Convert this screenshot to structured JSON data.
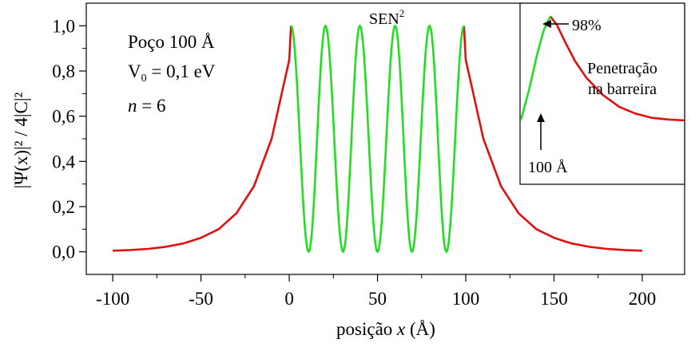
{
  "chart_data": {
    "type": "line",
    "title": "",
    "xlabel_prefix": "posição ",
    "xlabel_var": "x",
    "xlabel_suffix": " (Å)",
    "ylabel": "|Ψ(x)|² / 4|C|²",
    "xlim": [
      -115,
      224
    ],
    "ylim": [
      -0.1,
      1.1
    ],
    "x_ticks": [
      -100,
      -50,
      0,
      50,
      100,
      150,
      200
    ],
    "x_tick_labels": [
      "-100",
      "-50",
      "0",
      "50",
      "100",
      "150",
      "200"
    ],
    "y_ticks": [
      0.0,
      0.2,
      0.4,
      0.6,
      0.8,
      1.0
    ],
    "y_tick_labels": [
      "0,0",
      "0,2",
      "0,4",
      "0,6",
      "0,8",
      "1,0"
    ],
    "grid": false,
    "series": [
      {
        "color": "#e01010",
        "segments": [
          {
            "x": [
              -100,
              -90,
              -80,
              -70,
              -60,
              -50,
              -40,
              -30,
              -20,
              -10,
              0,
              1
            ],
            "y": [
              0.005,
              0.008,
              0.013,
              0.022,
              0.037,
              0.062,
              0.1,
              0.17,
              0.29,
              0.5,
              0.85,
              1.0
            ]
          },
          {
            "x": [
              99,
              100,
              110,
              120,
              130,
              140,
              150,
              160,
              170,
              180,
              190,
              200
            ],
            "y": [
              1.0,
              0.85,
              0.5,
              0.29,
              0.17,
              0.1,
              0.062,
              0.037,
              0.022,
              0.013,
              0.008,
              0.005
            ]
          }
        ]
      },
      {
        "color": "#22dd22",
        "function": "sin2",
        "x_range": [
          1,
          99
        ],
        "extrema": [
          {
            "x": 1,
            "y": 1.0
          },
          {
            "x": 11,
            "y": 0.0
          },
          {
            "x": 20.5,
            "y": 1.0
          },
          {
            "x": 30.5,
            "y": 0.0
          },
          {
            "x": 40,
            "y": 1.0
          },
          {
            "x": 50,
            "y": 0.0
          },
          {
            "x": 60,
            "y": 1.0
          },
          {
            "x": 69.5,
            "y": 0.0
          },
          {
            "x": 79.5,
            "y": 1.0
          },
          {
            "x": 89,
            "y": 0.0
          },
          {
            "x": 99,
            "y": 1.0
          }
        ]
      }
    ],
    "annotations": {
      "sen2_base": "SEN",
      "sen2_sup": "2",
      "well": "Poço 100 Å",
      "v0_main": "V",
      "v0_sub": "0",
      "v0_rest": " = 0,1 eV",
      "n_var": "n",
      "n_rest": " = 6"
    },
    "inset": {
      "label_98": "98%",
      "label_100": "100 Å",
      "text_line1": "Penetração",
      "text_line2": "na barreira",
      "green_points": [
        [
          0,
          0.37
        ],
        [
          0.05,
          0.55
        ],
        [
          0.1,
          0.76
        ],
        [
          0.14,
          0.9
        ],
        [
          0.18,
          0.98
        ]
      ],
      "red_points": [
        [
          0.18,
          0.98
        ],
        [
          0.22,
          0.93
        ],
        [
          0.27,
          0.83
        ],
        [
          0.33,
          0.72
        ],
        [
          0.4,
          0.62
        ],
        [
          0.5,
          0.52
        ],
        [
          0.6,
          0.45
        ],
        [
          0.7,
          0.41
        ],
        [
          0.8,
          0.385
        ],
        [
          0.9,
          0.375
        ],
        [
          1.0,
          0.37
        ]
      ]
    }
  }
}
